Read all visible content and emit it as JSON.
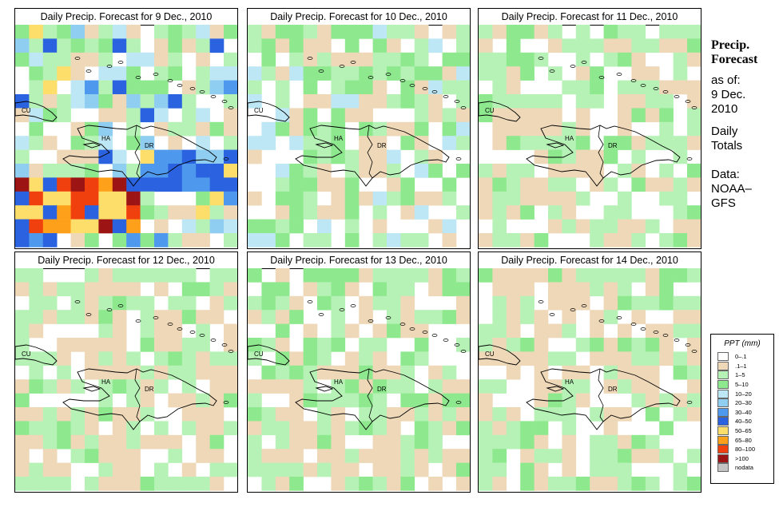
{
  "panels": [
    {
      "title": "Daily Precip. Forecast for  9 Dec., 2010",
      "intensity": 1.0
    },
    {
      "title": "Daily Precip. Forecast for  10 Dec., 2010",
      "intensity": 0.55
    },
    {
      "title": "Daily Precip. Forecast for  11 Dec., 2010",
      "intensity": 0.3
    },
    {
      "title": "Daily Precip. Forecast for  12 Dec., 2010",
      "intensity": 0.28
    },
    {
      "title": "Daily Precip. Forecast for  13 Dec., 2010",
      "intensity": 0.42
    },
    {
      "title": "Daily Precip. Forecast for  14 Dec., 2010",
      "intensity": 0.25
    }
  ],
  "map_labels": {
    "cuba": "CU",
    "haiti": "HA",
    "dominican_republic": "DR"
  },
  "sidebar": {
    "title_line1": "Precip.",
    "title_line2": "Forecast",
    "asof": "as of:",
    "date_line1": "9 Dec.",
    "date_line2": "2010",
    "totals_line1": "Daily",
    "totals_line2": "Totals",
    "source_line1": "Data:",
    "source_line2": "NOAA–",
    "source_line3": "GFS"
  },
  "legend": {
    "title": "PPT (mm)",
    "items": [
      {
        "label": "0–.1",
        "color": "#ffffff"
      },
      {
        "label": ".1–1",
        "color": "#eed8b8"
      },
      {
        "label": "1–5",
        "color": "#b6f2b6"
      },
      {
        "label": "5–10",
        "color": "#8ee88e"
      },
      {
        "label": "10–20",
        "color": "#bde7f5"
      },
      {
        "label": "20–30",
        "color": "#8fcdf1"
      },
      {
        "label": "30–40",
        "color": "#4e98ee"
      },
      {
        "label": "40–50",
        "color": "#2a62df"
      },
      {
        "label": "50–65",
        "color": "#fede6b"
      },
      {
        "label": "65–80",
        "color": "#ffa01a"
      },
      {
        "label": "80–100",
        "color": "#f0400e"
      },
      {
        "label": ">100",
        "color": "#9c1414"
      },
      {
        "label": "nodata",
        "color": "#c4c4c4"
      }
    ]
  }
}
